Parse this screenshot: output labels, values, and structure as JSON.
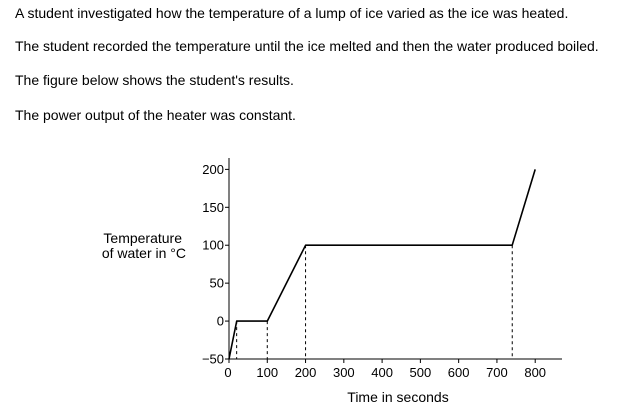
{
  "paragraphs": [
    "A student investigated how the temperature of a lump of ice varied as the ice was heated.",
    "The student recorded the temperature until the ice melted and then the water produced boiled.",
    "The figure below shows the student's results.",
    "The power output of the heater was constant."
  ],
  "chart_data": {
    "type": "line",
    "title": "",
    "xlabel": "Time in seconds",
    "ylabel_lines": [
      "Temperature",
      "of water in °C"
    ],
    "x_ticks": [
      0,
      100,
      200,
      300,
      400,
      500,
      600,
      700,
      800
    ],
    "y_ticks": [
      -50,
      0,
      50,
      100,
      150,
      200
    ],
    "xlim": [
      0,
      870
    ],
    "ylim": [
      -50,
      215
    ],
    "grid": false,
    "series": [
      {
        "x": [
          0,
          20,
          100,
          200,
          740,
          800
        ],
        "y": [
          -50,
          0,
          0,
          100,
          100,
          200
        ]
      }
    ],
    "dashed_guides": [
      {
        "x": 20,
        "y": 0
      },
      {
        "x": 100,
        "y": 0
      },
      {
        "x": 200,
        "y": 100
      },
      {
        "x": 740,
        "y": 100
      }
    ]
  }
}
